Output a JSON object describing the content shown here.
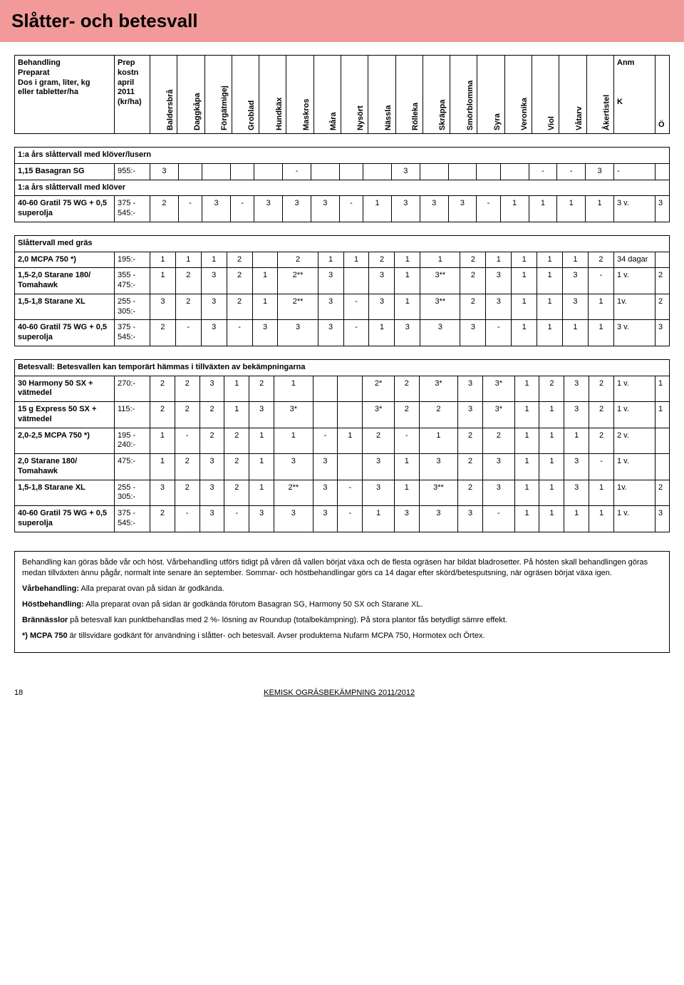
{
  "title": "Slåtter- och betesvall",
  "head": {
    "desc": "Behandling\nPreparat\nDos i gram, liter, kg\neller tabletter/ha",
    "cost": "Prep\nkostn\napril\n2011\n(kr/ha)",
    "cols": [
      "Baldersbrå",
      "Daggkåpa",
      "Förgätmigej",
      "Groblad",
      "Hundkäx",
      "Maskros",
      "Måra",
      "Nysört",
      "Nässla",
      "Rölleka",
      "Skräppa",
      "Smörblomma",
      "Syra",
      "Veronika",
      "Viol",
      "Våtarv",
      "Åkertistel"
    ],
    "anm": "Anm",
    "k": "K",
    "o": "Ö"
  },
  "section1": {
    "title": "1:a års slåttervall med klöver/lusern",
    "rows": [
      {
        "desc": "1,15 Basagran SG",
        "cost": "955:-",
        "v": [
          "3",
          "",
          "",
          "",
          "",
          "-",
          "",
          "",
          "",
          "3",
          "",
          "",
          "",
          "",
          "-",
          "-",
          "3"
        ],
        "anm": "-",
        "o": ""
      },
      {
        "desc": "1:a års slåttervall med klöver",
        "cost": "",
        "v": [
          "",
          "",
          "",
          "",
          "",
          "",
          "",
          "",
          "",
          "",
          "",
          "",
          "",
          "",
          "",
          "",
          ""
        ],
        "anm": "",
        "o": "",
        "bold": true,
        "spanfull": true
      },
      {
        "desc": "40-60 Gratil 75 WG + 0,5 superolja",
        "cost": "375 - 545:-",
        "v": [
          "2",
          "-",
          "3",
          "-",
          "3",
          "3",
          "3",
          "-",
          "1",
          "3",
          "3",
          "3",
          "-",
          "1",
          "1",
          "1",
          "1"
        ],
        "anm": "3 v.",
        "o": "3"
      }
    ]
  },
  "section2": {
    "title": "Slåttervall med gräs",
    "rows": [
      {
        "desc": "2,0 MCPA 750 *)",
        "cost": "195:-",
        "v": [
          "1",
          "1",
          "1",
          "2",
          "",
          "2",
          "1",
          "1",
          "2",
          "1",
          "1",
          "2",
          "1",
          "1",
          "1",
          "1",
          "2"
        ],
        "anm": "34 dagar",
        "o": ""
      },
      {
        "desc": "1,5-2,0 Starane 180/ Tomahawk",
        "cost": "355 - 475:-",
        "v": [
          "1",
          "2",
          "3",
          "2",
          "1",
          "2**",
          "3",
          "",
          "3",
          "1",
          "3**",
          "2",
          "3",
          "1",
          "1",
          "3",
          "-"
        ],
        "anm": "1 v.",
        "o": "2"
      },
      {
        "desc": "1,5-1,8 Starane XL",
        "cost": "255 - 305:-",
        "v": [
          "3",
          "2",
          "3",
          "2",
          "1",
          "2**",
          "3",
          "-",
          "3",
          "1",
          "3**",
          "2",
          "3",
          "1",
          "1",
          "3",
          "1"
        ],
        "anm": "1v.",
        "o": "2"
      },
      {
        "desc": "40-60 Gratil 75 WG + 0,5 superolja",
        "cost": "375 - 545:-",
        "v": [
          "2",
          "-",
          "3",
          "-",
          "3",
          "3",
          "3",
          "-",
          "1",
          "3",
          "3",
          "3",
          "-",
          "1",
          "1",
          "1",
          "1"
        ],
        "anm": "3 v.",
        "o": "3"
      }
    ]
  },
  "section3": {
    "title": "Betesvall: Betesvallen kan temporärt hämmas i tillväxten av bekämpningarna",
    "rows": [
      {
        "desc": "30 Harmony 50 SX + vätmedel",
        "cost": "270:-",
        "v": [
          "2",
          "2",
          "3",
          "1",
          "2",
          "1",
          "",
          "",
          "2*",
          "2",
          "3*",
          "3",
          "3*",
          "1",
          "2",
          "3",
          "2"
        ],
        "anm": "1 v.",
        "o": "1"
      },
      {
        "desc": "15 g Express 50 SX + vätmedel",
        "cost": "115:-",
        "v": [
          "2",
          "2",
          "2",
          "1",
          "3",
          "3*",
          "",
          "",
          "3*",
          "2",
          "2",
          "3",
          "3*",
          "1",
          "1",
          "3",
          "2"
        ],
        "anm": "1 v.",
        "o": "1"
      },
      {
        "desc": "2,0-2,5 MCPA 750 *)",
        "cost": "195 - 240:-",
        "v": [
          "1",
          "-",
          "2",
          "2",
          "1",
          "1",
          "-",
          "1",
          "2",
          "-",
          "1",
          "2",
          "2",
          "1",
          "1",
          "1",
          "2"
        ],
        "anm": "2 v.",
        "o": ""
      },
      {
        "desc": "2,0 Starane 180/ Tomahawk",
        "cost": "475:-",
        "v": [
          "1",
          "2",
          "3",
          "2",
          "1",
          "3",
          "3",
          "",
          "3",
          "1",
          "3",
          "2",
          "3",
          "1",
          "1",
          "3",
          "-"
        ],
        "anm": "1 v.",
        "o": ""
      },
      {
        "desc": "1,5-1,8 Starane XL",
        "cost": "255 - 305:-",
        "v": [
          "3",
          "2",
          "3",
          "2",
          "1",
          "2**",
          "3",
          "-",
          "3",
          "1",
          "3**",
          "2",
          "3",
          "1",
          "1",
          "3",
          "1"
        ],
        "anm": "1v.",
        "o": "2"
      },
      {
        "desc": "40-60 Gratil 75 WG + 0,5 superolja",
        "cost": "375 - 545:-",
        "v": [
          "2",
          "-",
          "3",
          "-",
          "3",
          "3",
          "3",
          "-",
          "1",
          "3",
          "3",
          "3",
          "-",
          "1",
          "1",
          "1",
          "1"
        ],
        "anm": "1 v.",
        "o": "3"
      }
    ]
  },
  "notes": [
    "Behandling kan göras både vår och höst. Vårbehandling utförs tidigt på våren då vallen börjat växa och de flesta ogräsen har bildat bladrosetter. På hösten skall behandlingen göras medan tillväxten ännu pågår, normalt inte senare än september. Sommar- och höstbehandlingar görs ca 14 dagar efter skörd/betesputsning, när ogräsen börjat växa igen.",
    "Vårbehandling: Alla preparat ovan på sidan är godkända.",
    "Höstbehandling: Alla preparat ovan på sidan är godkända förutom Basagran SG, Harmony 50 SX och Starane XL.",
    "Brännässlor på betesvall kan punktbehandlas med 2 %- lösning av Roundup (totalbekämpning). På stora plantor fås betydligt sämre effekt.",
    "*) MCPA 750 är tillsvidare godkänt för användning i slåtter- och betesvall. Avser produkterna Nufarm MCPA 750, Hormotex och Örtex."
  ],
  "notesBold": [
    "Vårbehandling:",
    "Höstbehandling:",
    "Brännässlor",
    "*) MCPA 750"
  ],
  "footer": {
    "page": "18",
    "text": "KEMISK OGRÄSBEKÄMPNING 2011/2012"
  }
}
